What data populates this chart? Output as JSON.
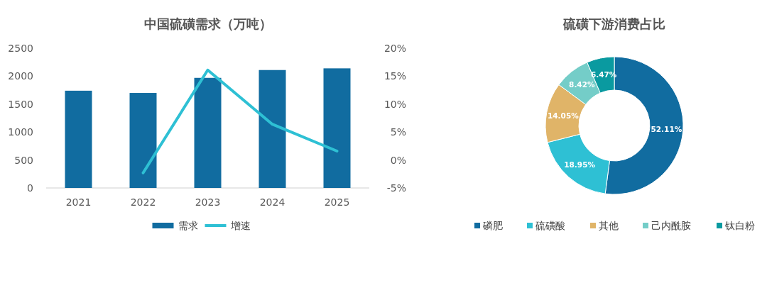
{
  "chart_data": [
    {
      "type": "bar",
      "title": "中国硫磺需求（万吨）",
      "categories": [
        "2021",
        "2022",
        "2023",
        "2024",
        "2025"
      ],
      "series": [
        {
          "name": "需求",
          "type": "bar",
          "color": "#116ca0",
          "values": [
            1740,
            1700,
            1970,
            2110,
            2140
          ]
        },
        {
          "name": "增速",
          "type": "line",
          "axis": "y2",
          "color": "#2ec0d4",
          "values": [
            null,
            -2.3,
            16.1,
            6.4,
            1.6
          ]
        }
      ],
      "ylim": [
        0,
        2500
      ],
      "yticks": [
        0,
        500,
        1000,
        1500,
        2000,
        2500
      ],
      "y2lim": [
        -5,
        20
      ],
      "y2ticks": [
        {
          "value": -5,
          "label": "-5%"
        },
        {
          "value": 0,
          "label": "0%"
        },
        {
          "value": 5,
          "label": "5%"
        },
        {
          "value": 10,
          "label": "10%"
        },
        {
          "value": 15,
          "label": "15%"
        },
        {
          "value": 20,
          "label": "20%"
        }
      ],
      "grid": false,
      "legend": "bottom",
      "marker": "none",
      "line_style": "solid"
    },
    {
      "type": "donut",
      "title": "硫磺下游消费占比",
      "categories": [
        "磷肥",
        "硫磺酸",
        "其他",
        "己内酰胺",
        "钛白粉"
      ],
      "values": [
        52.11,
        18.95,
        14.05,
        8.42,
        6.47
      ],
      "colors": [
        "#116ca0",
        "#2ec0d4",
        "#e0b468",
        "#74cdc8",
        "#0a9aa0"
      ],
      "value_labels": [
        "52.11%",
        "18.95%",
        "14.05%",
        "8.42%",
        "6.47%"
      ],
      "legend": "bottom"
    }
  ]
}
